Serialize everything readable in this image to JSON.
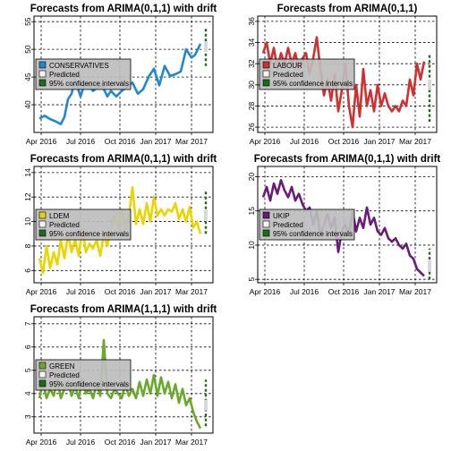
{
  "chart_data": [
    {
      "type": "line",
      "title": "Forecasts from ARIMA(0,1,1) with drift",
      "xlabel": "",
      "ylabel": "",
      "x_ticks": [
        "Apr 2016",
        "Jul 2016",
        "Oct 2016",
        "Jan 2017",
        "Mar 2017"
      ],
      "y_ticks": [
        40,
        45,
        50,
        55
      ],
      "ylim": [
        35,
        56
      ],
      "xlim": [
        0,
        1
      ],
      "grid": true,
      "legend_position": "left",
      "legend": [
        "CONSERVATIVES",
        "Predicted",
        "95% confidence intervals"
      ],
      "series": [
        {
          "name": "CONSERVATIVES",
          "color": "#1e88d2",
          "x": [
            0.03,
            0.06,
            0.09,
            0.12,
            0.15,
            0.17,
            0.19,
            0.21,
            0.23,
            0.26,
            0.28,
            0.3,
            0.33,
            0.35,
            0.38,
            0.41,
            0.43,
            0.46,
            0.49,
            0.52,
            0.55,
            0.58,
            0.61,
            0.64,
            0.67,
            0.7,
            0.73,
            0.76,
            0.79,
            0.82,
            0.85,
            0.88,
            0.9,
            0.93
          ],
          "y": [
            37.5,
            38,
            37.4,
            37,
            36.5,
            37.8,
            41,
            42,
            44.5,
            41.5,
            43.5,
            43.8,
            42.5,
            43,
            43.5,
            41.5,
            42.5,
            41.5,
            42.5,
            43.2,
            44,
            42,
            42.8,
            45,
            46.5,
            43.5,
            47,
            45.2,
            45.5,
            46,
            50,
            48.5,
            49,
            51
          ]
        },
        {
          "name": "Predicted",
          "color": "#e8e8e8",
          "x": [
            0.96
          ],
          "y": [
            50.5
          ]
        },
        {
          "name": "95% confidence intervals",
          "color": "#1a6e1a",
          "x": [
            0.96,
            0.96
          ],
          "y": [
            47,
            54
          ]
        }
      ]
    },
    {
      "type": "line",
      "title": "Forecasts from ARIMA(0,1,1)",
      "xlabel": "",
      "ylabel": "",
      "x_ticks": [
        "Apr 2016",
        "Jul 2016",
        "Oct 2016",
        "Jan 2017",
        "Mar 2017"
      ],
      "y_ticks": [
        26,
        28,
        30,
        32,
        34,
        36
      ],
      "ylim": [
        25.5,
        36.5
      ],
      "xlim": [
        0,
        1
      ],
      "grid": true,
      "legend_position": "left",
      "legend": [
        "LABOUR",
        "Predicted",
        "95% confidence intervals"
      ],
      "series": [
        {
          "name": "LABOUR",
          "color": "#d03030",
          "x": [
            0.03,
            0.05,
            0.07,
            0.09,
            0.11,
            0.13,
            0.15,
            0.17,
            0.19,
            0.21,
            0.23,
            0.25,
            0.27,
            0.29,
            0.31,
            0.33,
            0.35,
            0.37,
            0.39,
            0.41,
            0.43,
            0.45,
            0.47,
            0.49,
            0.51,
            0.53,
            0.55,
            0.57,
            0.59,
            0.61,
            0.63,
            0.65,
            0.67,
            0.69,
            0.71,
            0.73,
            0.75,
            0.77,
            0.79,
            0.81,
            0.83,
            0.85,
            0.87,
            0.89,
            0.91,
            0.93
          ],
          "y": [
            33,
            34,
            32,
            33.5,
            31.5,
            33,
            32,
            33.5,
            32,
            33,
            31.5,
            32.5,
            33,
            31,
            32.5,
            34.5,
            31.5,
            29,
            30.5,
            28.5,
            31,
            27.5,
            29.5,
            32,
            28,
            26,
            30,
            27,
            31.5,
            28,
            29.5,
            27.5,
            30,
            28,
            29.2,
            28,
            27.5,
            28,
            27.5,
            28.5,
            28,
            30.5,
            29,
            32,
            30.5,
            32.2
          ]
        },
        {
          "name": "Predicted",
          "color": "#e8e8e8",
          "x": [
            0.96
          ],
          "y": [
            30
          ]
        },
        {
          "name": "95% confidence intervals",
          "color": "#1a6e1a",
          "x": [
            0.96,
            0.96
          ],
          "y": [
            26.5,
            33
          ]
        }
      ]
    },
    {
      "type": "line",
      "title": "Forecasts from ARIMA(0,1,1) with drift",
      "xlabel": "",
      "ylabel": "",
      "x_ticks": [
        "Apr 2016",
        "Jul 2016",
        "Oct 2016",
        "Jan 2017",
        "Mar 2017"
      ],
      "y_ticks": [
        6,
        8,
        10,
        12,
        14
      ],
      "ylim": [
        5,
        14.5
      ],
      "xlim": [
        0,
        1
      ],
      "grid": true,
      "legend_position": "left",
      "legend": [
        "LDEM",
        "Predicted",
        "95% confidence intervals"
      ],
      "series": [
        {
          "name": "LDEM",
          "color": "#ecd400",
          "x": [
            0.03,
            0.05,
            0.07,
            0.09,
            0.11,
            0.13,
            0.15,
            0.17,
            0.19,
            0.21,
            0.23,
            0.25,
            0.27,
            0.29,
            0.31,
            0.33,
            0.35,
            0.37,
            0.39,
            0.41,
            0.43,
            0.45,
            0.47,
            0.49,
            0.51,
            0.53,
            0.55,
            0.57,
            0.59,
            0.61,
            0.63,
            0.65,
            0.67,
            0.69,
            0.71,
            0.73,
            0.75,
            0.77,
            0.79,
            0.81,
            0.83,
            0.85,
            0.87,
            0.89,
            0.91,
            0.93
          ],
          "y": [
            7,
            5.8,
            8,
            6.2,
            7.5,
            6.5,
            8.5,
            7,
            9,
            7.5,
            8.5,
            7.2,
            9.5,
            7.5,
            8.2,
            7.8,
            8.5,
            7.2,
            9,
            8,
            9.5,
            10.5,
            9.5,
            11,
            9.5,
            10.5,
            12.8,
            9.8,
            11,
            9.8,
            11.5,
            10,
            12,
            10.5,
            11,
            10.5,
            11,
            10.8,
            11.5,
            10.2,
            11,
            10,
            11.2,
            9.5,
            10,
            9
          ]
        },
        {
          "name": "Predicted",
          "color": "#e8e8e8",
          "x": [
            0.96
          ],
          "y": [
            10.5
          ]
        },
        {
          "name": "95% confidence intervals",
          "color": "#1a6e1a",
          "x": [
            0.96,
            0.96
          ],
          "y": [
            9,
            12.5
          ]
        }
      ]
    },
    {
      "type": "line",
      "title": "Forecasts from ARIMA(0,1,1) with drift",
      "xlabel": "",
      "ylabel": "",
      "x_ticks": [
        "Apr 2016",
        "Jul 2016",
        "Oct 2016",
        "Jan 2017",
        "Mar 2017"
      ],
      "y_ticks": [
        5,
        10,
        15,
        20
      ],
      "ylim": [
        4.5,
        21.5
      ],
      "xlim": [
        0,
        1
      ],
      "grid": true,
      "legend_position": "left",
      "legend": [
        "UKIP",
        "Predicted",
        "95% confidence intervals"
      ],
      "series": [
        {
          "name": "UKIP",
          "color": "#6a1a7a",
          "x": [
            0.03,
            0.05,
            0.07,
            0.09,
            0.11,
            0.13,
            0.15,
            0.17,
            0.19,
            0.21,
            0.23,
            0.25,
            0.27,
            0.29,
            0.31,
            0.33,
            0.35,
            0.37,
            0.39,
            0.41,
            0.43,
            0.45,
            0.47,
            0.49,
            0.51,
            0.53,
            0.55,
            0.57,
            0.59,
            0.61,
            0.63,
            0.65,
            0.67,
            0.69,
            0.71,
            0.73,
            0.75,
            0.77,
            0.79,
            0.81,
            0.83,
            0.85,
            0.87,
            0.89,
            0.91,
            0.93
          ],
          "y": [
            17,
            18.5,
            16.5,
            19,
            17.5,
            19.5,
            18,
            17,
            18.5,
            16.5,
            17.5,
            16,
            15,
            15.5,
            13,
            15,
            11.5,
            13,
            14.5,
            12.5,
            14,
            9,
            12,
            13,
            11.5,
            15,
            12,
            14,
            12.5,
            15.5,
            13,
            14,
            12,
            11.5,
            12.5,
            11,
            10.5,
            11,
            10,
            9.5,
            10.2,
            8.5,
            8,
            6.5,
            6,
            5.5
          ]
        },
        {
          "name": "Predicted",
          "color": "#e8e8e8",
          "x": [
            0.96
          ],
          "y": [
            7
          ]
        },
        {
          "name": "95% confidence intervals",
          "color": "#1a6e1a",
          "x": [
            0.96,
            0.96
          ],
          "y": [
            5,
            9.5
          ]
        }
      ]
    },
    {
      "type": "line",
      "title": "Forecasts from ARIMA(1,1,1) with drift",
      "xlabel": "",
      "ylabel": "",
      "x_ticks": [
        "Apr 2016",
        "Jul 2016",
        "Oct 2016",
        "Jan 2017",
        "Mar 2017"
      ],
      "y_ticks": [
        3,
        4,
        5,
        6,
        7
      ],
      "ylim": [
        2.3,
        7.3
      ],
      "xlim": [
        0,
        1
      ],
      "grid": true,
      "legend_position": "left",
      "legend": [
        "GREEN",
        "Predicted",
        "95% confidence intervals"
      ],
      "series": [
        {
          "name": "GREEN",
          "color": "#6aaa2a",
          "x": [
            0.03,
            0.05,
            0.07,
            0.09,
            0.11,
            0.13,
            0.15,
            0.17,
            0.19,
            0.21,
            0.23,
            0.25,
            0.27,
            0.29,
            0.31,
            0.33,
            0.35,
            0.37,
            0.39,
            0.41,
            0.43,
            0.45,
            0.47,
            0.49,
            0.51,
            0.53,
            0.55,
            0.57,
            0.59,
            0.61,
            0.63,
            0.65,
            0.67,
            0.69,
            0.71,
            0.73,
            0.75,
            0.77,
            0.79,
            0.81,
            0.83,
            0.85,
            0.87,
            0.89,
            0.91,
            0.93
          ],
          "y": [
            3.8,
            4.5,
            3.8,
            4.2,
            3.9,
            4.6,
            3.8,
            4.2,
            4.5,
            3.9,
            4.3,
            3.8,
            4.6,
            4,
            4.2,
            3.8,
            4.4,
            3.9,
            6.3,
            4,
            3.8,
            4.2,
            4,
            3.8,
            4.4,
            3.9,
            4.2,
            3.8,
            4.5,
            3.9,
            4.6,
            4,
            4.8,
            3.9,
            4.7,
            4,
            4.5,
            3.8,
            4.4,
            3.6,
            4.2,
            3.5,
            3.8,
            3.2,
            2.8,
            2.5
          ]
        },
        {
          "name": "Predicted",
          "color": "#e8e8e8",
          "x": [
            0.96
          ],
          "y": [
            3.5
          ]
        },
        {
          "name": "95% confidence intervals",
          "color": "#1a6e1a",
          "x": [
            0.96,
            0.96
          ],
          "y": [
            2.6,
            4.6
          ]
        }
      ]
    }
  ]
}
